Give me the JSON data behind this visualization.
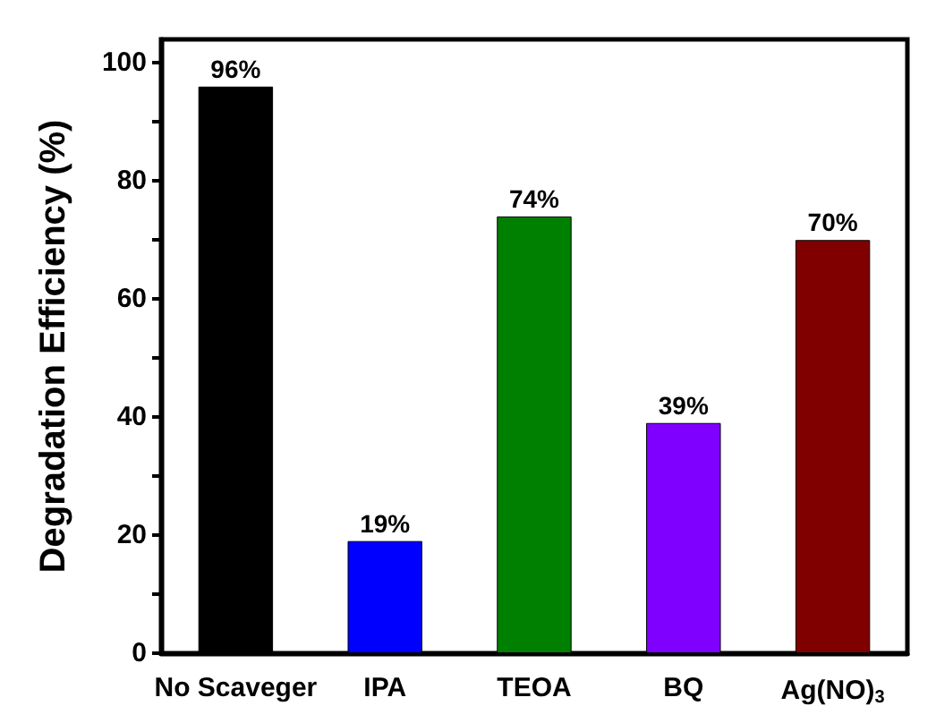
{
  "chart_data": {
    "type": "bar",
    "ylabel": "Degradation Efficiency (%)",
    "categories": [
      "No Scaveger",
      "IPA",
      "TEOA",
      "BQ",
      "Ag(NO)$_{3}$"
    ],
    "values": [
      96,
      19,
      74,
      39,
      70
    ],
    "colors": [
      "#000000",
      "#0000ff",
      "#008000",
      "#8000ff",
      "#800000"
    ],
    "value_labels": [
      "96%",
      "19%",
      "74%",
      "39%",
      "70%"
    ],
    "ylim": [
      0,
      104
    ],
    "yticks": [
      0,
      {
        "value": 10,
        "label": null
      },
      20,
      {
        "value": 30,
        "label": null
      },
      40,
      {
        "value": 50,
        "label": null
      },
      60,
      {
        "value": 70,
        "label": null
      },
      80,
      {
        "value": 90,
        "label": null
      },
      100
    ],
    "grid": false
  }
}
